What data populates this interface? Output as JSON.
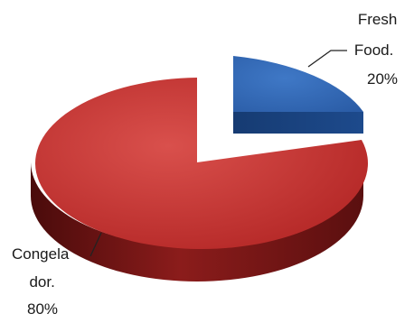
{
  "chart_data": {
    "type": "pie",
    "style": "3d-exploded",
    "slices": [
      {
        "label_lines": [
          "Fresh",
          "Food.",
          "20%"
        ],
        "value": 20,
        "color": "#2f63b0"
      },
      {
        "label_lines": [
          "Congela",
          "dor.",
          "80%"
        ],
        "value": 80,
        "color": "#c0302f"
      }
    ]
  }
}
